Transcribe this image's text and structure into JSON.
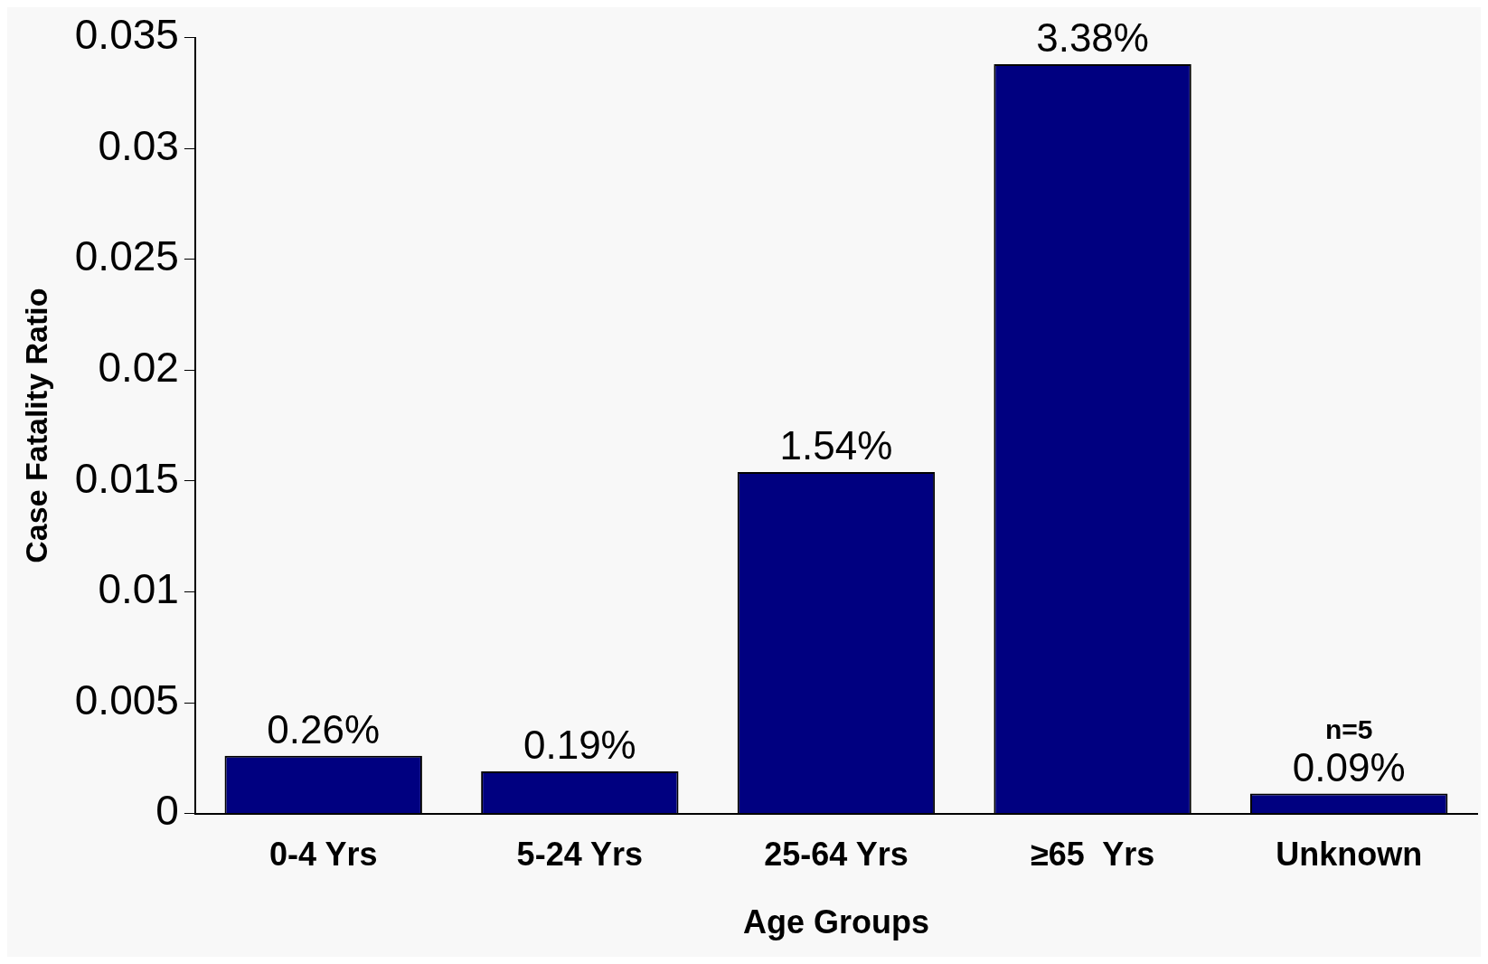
{
  "chart_data": {
    "type": "bar",
    "xlabel": "Age Groups",
    "ylabel": "Case Fatality Ratio",
    "categories": [
      "0-4 Yrs",
      "5-24 Yrs",
      "25-64 Yrs",
      "≥65  Yrs",
      "Unknown"
    ],
    "values": [
      0.0026,
      0.0019,
      0.0154,
      0.0338,
      0.0009
    ],
    "value_labels": [
      "0.26%",
      "0.19%",
      "1.54%",
      "3.38%",
      "0.09%"
    ],
    "color": "#000080",
    "ylim": [
      0,
      0.035
    ],
    "yticks": [
      0,
      0.005,
      0.01,
      0.015,
      0.02,
      0.025,
      0.03,
      0.035
    ],
    "annotations": [
      "n=5"
    ],
    "grid": false,
    "legend": false
  }
}
